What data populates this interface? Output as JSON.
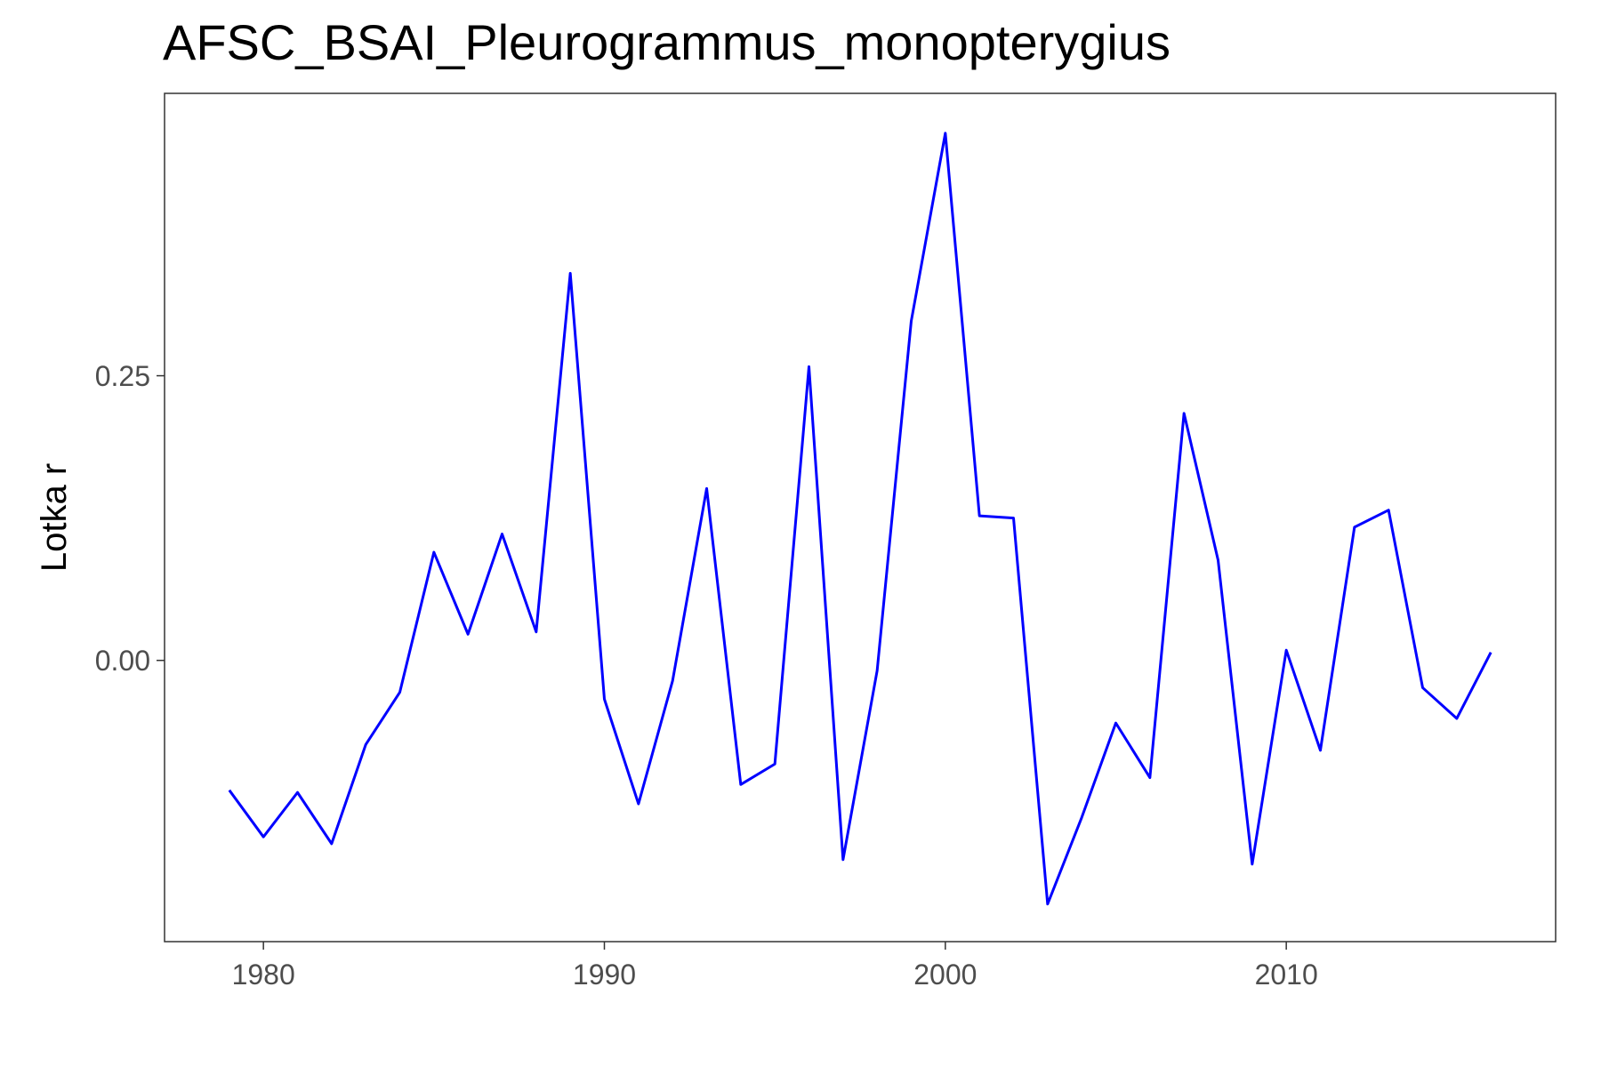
{
  "chart_data": {
    "type": "line",
    "title": "AFSC_BSAI_Pleurogrammus_monopterygius",
    "xlabel": "",
    "ylabel": "Lotka r",
    "xlim": [
      1977.1,
      2017.9
    ],
    "ylim": [
      -0.247,
      0.498
    ],
    "x_ticks": [
      1980,
      1990,
      2000,
      2010
    ],
    "y_ticks": [
      0.25,
      0.0
    ],
    "x_tick_labels": [
      "1980",
      "1990",
      "2000",
      "2010"
    ],
    "y_tick_labels": [
      "0.25",
      "0.00"
    ],
    "grid": false,
    "legend": "none",
    "line_color": "#0000ff",
    "series": [
      {
        "x": [
          1979,
          1980,
          1981,
          1982,
          1983,
          1984,
          1985,
          1986,
          1987,
          1988,
          1989,
          1990,
          1991,
          1992,
          1993,
          1994,
          1995,
          1996,
          1997,
          1998,
          1999,
          2000,
          2001,
          2002,
          2003,
          2004,
          2005,
          2006,
          2007,
          2008,
          2009,
          2010,
          2011,
          2012,
          2013,
          2014,
          2015,
          2016
        ],
        "values": [
          -0.114,
          -0.155,
          -0.116,
          -0.161,
          -0.074,
          -0.028,
          0.095,
          0.023,
          0.111,
          0.025,
          0.34,
          -0.034,
          -0.126,
          -0.018,
          0.151,
          -0.109,
          -0.091,
          0.258,
          -0.175,
          -0.009,
          0.298,
          0.463,
          0.127,
          0.125,
          -0.214,
          -0.138,
          -0.055,
          -0.103,
          0.217,
          0.088,
          -0.179,
          0.009,
          -0.079,
          0.117,
          0.132,
          -0.024,
          -0.051,
          0.007
        ]
      }
    ]
  }
}
